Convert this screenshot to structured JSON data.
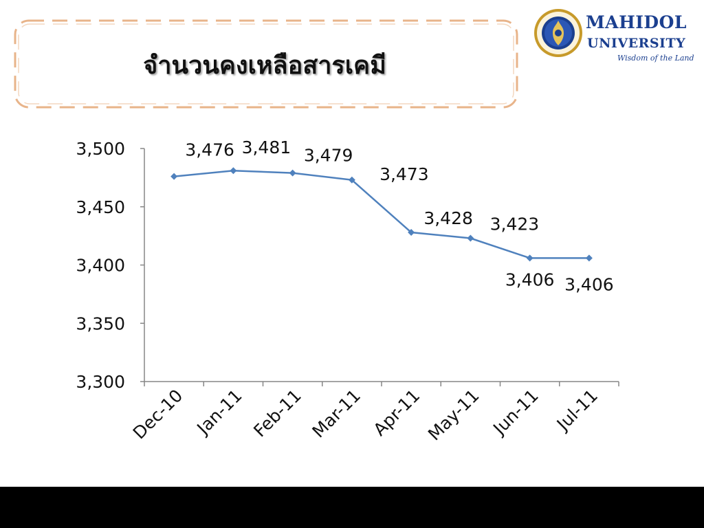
{
  "slide": {
    "title": "จำนวนคงเหลือสารเคมี"
  },
  "logo": {
    "name": "MAHIDOL",
    "subtitle": "UNIVERSITY",
    "tagline": "Wisdom of the Land",
    "colors": {
      "navy": "#1b3f8f",
      "gold": "#c79a2a"
    }
  },
  "colors": {
    "frame": "#e8b48a",
    "series": "#4f81bd",
    "axis": "#868686",
    "background": "#ffffff",
    "bottom_bar": "#000000"
  },
  "chart_data": {
    "type": "line",
    "categories": [
      "Dec-10",
      "Jan-11",
      "Feb-11",
      "Mar-11",
      "Apr-11",
      "May-11",
      "Jun-11",
      "Jul-11"
    ],
    "series": [
      {
        "values": [
          3476,
          3481,
          3479,
          3473,
          3428,
          3423,
          3406,
          3406
        ]
      }
    ],
    "data_labels": [
      "3,476",
      "3,481",
      "3,479",
      "3,473",
      "3,428",
      "3,423",
      "3,406",
      "3,406"
    ],
    "ylim": [
      3300,
      3500
    ],
    "yticks": [
      "3,300",
      "3,350",
      "3,400",
      "3,450",
      "3,500"
    ],
    "grid": false,
    "legend": "none"
  }
}
